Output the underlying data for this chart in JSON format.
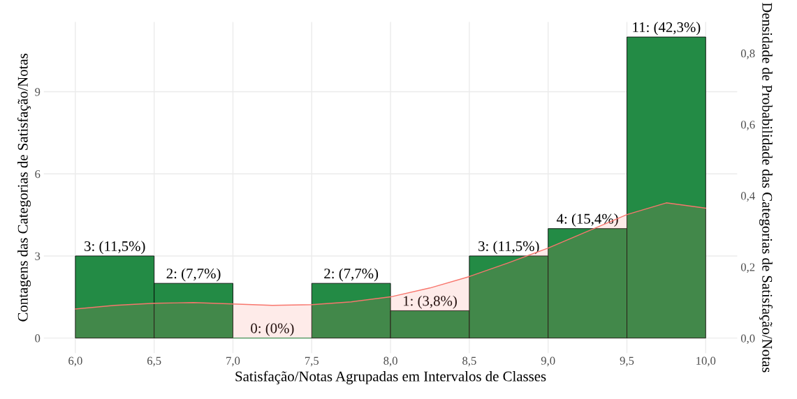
{
  "chart_data": {
    "type": "histogram",
    "xlabel": "Satisfação/Notas Agrupadas em Intervalos de Classes",
    "ylabel": "Contagens das Categorias de Satisfação/Notas",
    "y2label": "Densidade de Probabilidade das Categorias de Satisfação/Notas",
    "bins": [
      6.0,
      6.5,
      7.0,
      7.5,
      8.0,
      8.5,
      9.0,
      9.5,
      10.0
    ],
    "series": [
      {
        "color": "#238b45",
        "values": [
          3,
          2,
          0,
          2,
          1,
          3,
          4,
          11
        ],
        "value_labels": [
          "3: (11,5%)",
          "2: (7,7%)",
          "0: (0%)",
          "2: (7,7%)",
          "1: (3,8%)",
          "3: (11,5%)",
          "4: (15,4%)",
          "11: (42,3%)"
        ]
      },
      {
        "type": "area",
        "axis": "y2",
        "color": "#f8766d",
        "x": [
          6.0,
          6.25,
          6.5,
          6.75,
          7.0,
          7.25,
          7.5,
          7.75,
          8.0,
          8.25,
          8.5,
          8.75,
          9.0,
          9.25,
          9.5,
          9.75,
          10.0
        ],
        "values": [
          0.082,
          0.092,
          0.098,
          0.1,
          0.096,
          0.092,
          0.094,
          0.102,
          0.116,
          0.141,
          0.173,
          0.212,
          0.253,
          0.3,
          0.347,
          0.38,
          0.365
        ]
      }
    ],
    "xlim": [
      5.8,
      10.2
    ],
    "xticks": [
      {
        "value": 6.0,
        "label": "6,0"
      },
      {
        "value": 6.5,
        "label": "6,5"
      },
      {
        "value": 7.0,
        "label": "7,0"
      },
      {
        "value": 7.5,
        "label": "7,5"
      },
      {
        "value": 8.0,
        "label": "8,0"
      },
      {
        "value": 8.5,
        "label": "8,5"
      },
      {
        "value": 9.0,
        "label": "9,0"
      },
      {
        "value": 9.5,
        "label": "9,5"
      },
      {
        "value": 10.0,
        "label": "10,0"
      }
    ],
    "ylim": [
      -0.55,
      11.55
    ],
    "yticks": [
      0,
      3,
      6,
      9
    ],
    "y2lim": [
      -0.042,
      0.888
    ],
    "y2ticks": [
      {
        "value": 0.0,
        "label": "0,0"
      },
      {
        "value": 0.2,
        "label": "0,2"
      },
      {
        "value": 0.4,
        "label": "0,4"
      },
      {
        "value": 0.6,
        "label": "0,6"
      },
      {
        "value": 0.8,
        "label": "0,8"
      }
    ],
    "grid": true
  }
}
